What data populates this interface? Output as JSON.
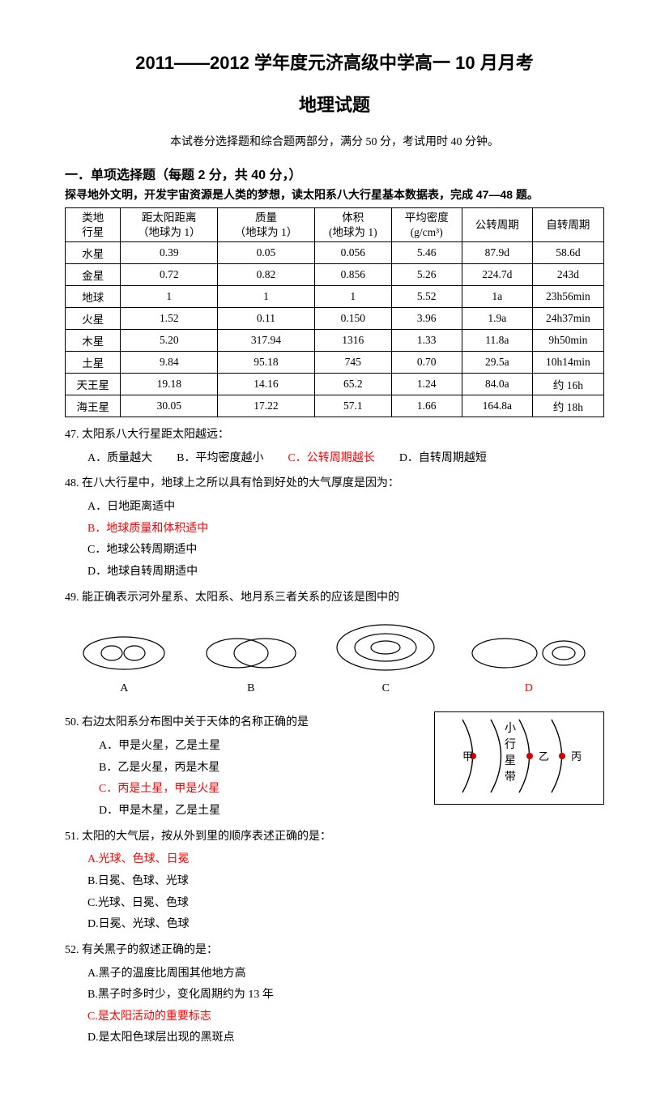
{
  "title": "2011——2012 学年度元济高级中学高一 10 月月考",
  "subtitle": "地理试题",
  "exam_info": "本试卷分选择题和综合题两部分，满分 50 分，考试用时 40 分钟。",
  "section_head": "一．单项选择题（每题 2 分，共  40 分，）",
  "instruction": "探寻地外文明，开发宇宙资源是人类的梦想，读太阳系八大行星基本数据表，完成 47—48 题。",
  "table": {
    "columns": [
      "类地\n行星",
      "距太阳距离\n（地球为 1）",
      "质量\n（地球为 1）",
      "体积\n(地球为 1)",
      "平均密度\n(g/cm³)",
      "公转周期",
      "自转周期"
    ],
    "rows": [
      [
        "水星",
        "0.39",
        "0.05",
        "0.056",
        "5.46",
        "87.9d",
        "58.6d"
      ],
      [
        "金星",
        "0.72",
        "0.82",
        "0.856",
        "5.26",
        "224.7d",
        "243d"
      ],
      [
        "地球",
        "1",
        "1",
        "1",
        "5.52",
        "1a",
        "23h56min"
      ],
      [
        "火星",
        "1.52",
        "0.11",
        "0.150",
        "3.96",
        "1.9a",
        "24h37min"
      ],
      [
        "木星",
        "5.20",
        "317.94",
        "1316",
        "1.33",
        "11.8a",
        "9h50min"
      ],
      [
        "土星",
        "9.84",
        "95.18",
        "745",
        "0.70",
        "29.5a",
        "10h14min"
      ],
      [
        "天王星",
        "19.18",
        "14.16",
        "65.2",
        "1.24",
        "84.0a",
        "约 16h"
      ],
      [
        "海王星",
        "30.05",
        "17.22",
        "57.1",
        "1.66",
        "164.8a",
        "约 18h"
      ]
    ],
    "border_color": "#000000",
    "fontsize": 13.5
  },
  "q47": {
    "text": "47. 太阳系八大行星距太阳越远：",
    "A": "A．质量越大",
    "B": "B．平均密度越小",
    "C": "C．公转周期越长",
    "D": "D．自转周期越短",
    "answer": "C"
  },
  "q48": {
    "text": "48. 在八大行星中，地球上之所以具有恰到好处的大气厚度是因为：",
    "A": "A．日地距离适中",
    "B": "B．地球质量和体积适中",
    "C": "C．地球公转周期适中",
    "D": "D．地球自转周期适中",
    "answer": "B"
  },
  "q49": {
    "text": "49. 能正确表示河外星系、太阳系、地月系三者关系的应该是图中的",
    "labels": {
      "A": "A",
      "B": "B",
      "C": "C",
      "D": "D"
    },
    "answer": "D",
    "svg_stroke": "#000000"
  },
  "q50": {
    "text": "50. 右边太阳系分布图中关于天体的名称正确的是",
    "A": "A．甲是火星，乙是土星",
    "B": "B．乙是火星，丙是木星",
    "C": "C．丙是土星，甲是火星",
    "D": "D．甲是木星，乙是土星",
    "answer": "C",
    "diagram": {
      "center_text": "小行星带",
      "left_dot": "甲",
      "mid_dot": "乙",
      "right_dot": "丙",
      "dot_color": "#d00000",
      "stroke": "#000000"
    }
  },
  "q51": {
    "text": "51. 太阳的大气层，按从外到里的顺序表述正确的是：",
    "A": "A.光球、色球、日冕",
    "B": "B.日冕、色球、光球",
    "C": "C.光球、日冕、色球",
    "D": "D.日冕、光球、色球",
    "answer": "A"
  },
  "q52": {
    "text": "52. 有关黑子的叙述正确的是：",
    "A": "A.黑子的温度比周围其他地方高",
    "B": "B.黑子时多时少，变化周期约为 13 年",
    "C": "C.是太阳活动的重要标志",
    "D": "D.是太阳色球层出现的黑斑点",
    "answer": "C"
  },
  "colors": {
    "text": "#000000",
    "answer": "#ff0000",
    "background": "#ffffff"
  }
}
